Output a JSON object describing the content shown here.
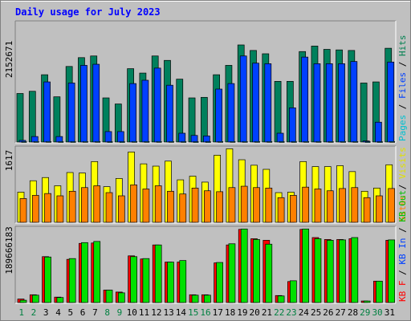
{
  "chart_data": {
    "type": "bar",
    "title": "Daily usage for July 2023",
    "categories": [
      "1",
      "2",
      "3",
      "4",
      "5",
      "6",
      "7",
      "8",
      "9",
      "10",
      "11",
      "12",
      "13",
      "14",
      "15",
      "16",
      "17",
      "18",
      "19",
      "20",
      "21",
      "22",
      "23",
      "24",
      "25",
      "26",
      "27",
      "28",
      "29",
      "30",
      "31"
    ],
    "weekend_days": [
      "1",
      "2",
      "8",
      "9",
      "15",
      "16",
      "22",
      "23",
      "29",
      "30"
    ],
    "panels": [
      {
        "id": "hits",
        "max_label": "2152671",
        "ylim": [
          0,
          2152671
        ],
        "legend": [
          {
            "text": "Pages",
            "color": "#00c0d0"
          },
          {
            "text": "Files",
            "color": "#0040ff"
          },
          {
            "text": "Hits",
            "color": "#008050"
          }
        ],
        "series": [
          {
            "name": "Hits",
            "color": "#00805c",
            "values": [
              880000,
              920000,
              1220000,
              820000,
              1370000,
              1530000,
              1560000,
              800000,
              690000,
              1330000,
              1250000,
              1560000,
              1480000,
              1140000,
              800000,
              810000,
              1220000,
              1390000,
              1760000,
              1660000,
              1600000,
              1100000,
              1100000,
              1640000,
              1740000,
              1680000,
              1670000,
              1660000,
              1070000,
              1090000,
              1700000
            ]
          },
          {
            "name": "Files",
            "color": "#0040ff",
            "values": [
              30000,
              100000,
              1090000,
              100000,
              1070000,
              1390000,
              1410000,
              190000,
              190000,
              1060000,
              1120000,
              1340000,
              1030000,
              160000,
              120000,
              110000,
              960000,
              1060000,
              1560000,
              1430000,
              1420000,
              160000,
              620000,
              1540000,
              1420000,
              1420000,
              1420000,
              1460000,
              20000,
              360000,
              1450000
            ]
          },
          {
            "name": "Pages",
            "color": "#00c0d0",
            "values": [
              8000,
              9000,
              9000,
              8000,
              8000,
              9000,
              9000,
              7000,
              7000,
              9000,
              9000,
              9000,
              9000,
              8000,
              7000,
              7000,
              9000,
              9000,
              9000,
              9000,
              9000,
              8000,
              8000,
              9000,
              9000,
              9000,
              9000,
              9000,
              7000,
              7000,
              9000
            ]
          }
        ]
      },
      {
        "id": "visits",
        "max_label": "1617",
        "ylim": [
          0,
          1617
        ],
        "legend": [
          {
            "text": "Sites",
            "color": "#ff8000"
          },
          {
            "text": "Visits",
            "color": "#e0e000"
          }
        ],
        "series": [
          {
            "name": "Visits",
            "color": "#ffff00",
            "values": [
              660,
              910,
              980,
              800,
              1090,
              1080,
              1330,
              780,
              960,
              1540,
              1280,
              1230,
              1340,
              930,
              1010,
              880,
              1470,
              1610,
              1370,
              1250,
              1160,
              650,
              660,
              1330,
              1220,
              1220,
              1240,
              1110,
              680,
              750,
              1260
            ]
          },
          {
            "name": "Sites",
            "color": "#ff8000",
            "values": [
              520,
              590,
              630,
              580,
              680,
              760,
              800,
              650,
              580,
              820,
              730,
              800,
              680,
              620,
              750,
              690,
              670,
              760,
              790,
              760,
              750,
              540,
              590,
              770,
              730,
              690,
              740,
              760,
              540,
              580,
              740
            ]
          }
        ]
      },
      {
        "id": "kbytes",
        "max_label": "189666183",
        "ylim": [
          0,
          189666183
        ],
        "legend": [
          {
            "text": "KB F",
            "color": "#ff0000"
          },
          {
            "text": "KB In",
            "color": "#0040ff"
          },
          {
            "text": "KB Out",
            "color": "#00c000"
          }
        ],
        "series": [
          {
            "name": "KB F",
            "color": "#ff0000",
            "values": [
              9000000,
              20000000,
              118000000,
              14000000,
              111000000,
              152000000,
              153000000,
              32000000,
              27000000,
              120000000,
              112000000,
              148000000,
              104000000,
              104000000,
              20000000,
              20000000,
              102000000,
              148000000,
              188000000,
              164000000,
              160000000,
              18000000,
              54000000,
              188000000,
              167000000,
              162000000,
              162000000,
              164000000,
              4000000,
              55000000,
              160000000
            ]
          },
          {
            "name": "KB Out",
            "color": "#00e000",
            "values": [
              6000000,
              19000000,
              117000000,
              13000000,
              113000000,
              154000000,
              157000000,
              32000000,
              25000000,
              118000000,
              113000000,
              148000000,
              104000000,
              108000000,
              19000000,
              19000000,
              103000000,
              151000000,
              189000000,
              162000000,
              150000000,
              17000000,
              56000000,
              189000000,
              164000000,
              160000000,
              161000000,
              167000000,
              4000000,
              55000000,
              161000000
            ]
          }
        ]
      }
    ]
  }
}
